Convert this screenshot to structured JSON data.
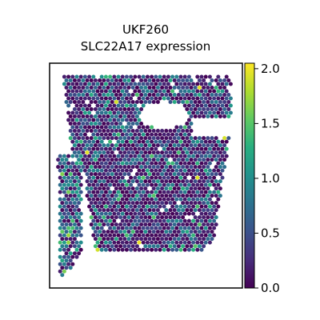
{
  "chart_data": {
    "type": "scatter",
    "title": "UKF260",
    "subtitle": "SLC22A17 expression",
    "xlabel": "",
    "ylabel": "",
    "grid": false,
    "colormap": "viridis",
    "colorbar": {
      "min": 0.0,
      "max": 2.05,
      "ticks": [
        0.0,
        0.5,
        1.0,
        1.5,
        2.0
      ],
      "tick_labels": [
        "0.0",
        "0.5",
        "1.0",
        "1.5",
        "2.0"
      ]
    }
  }
}
